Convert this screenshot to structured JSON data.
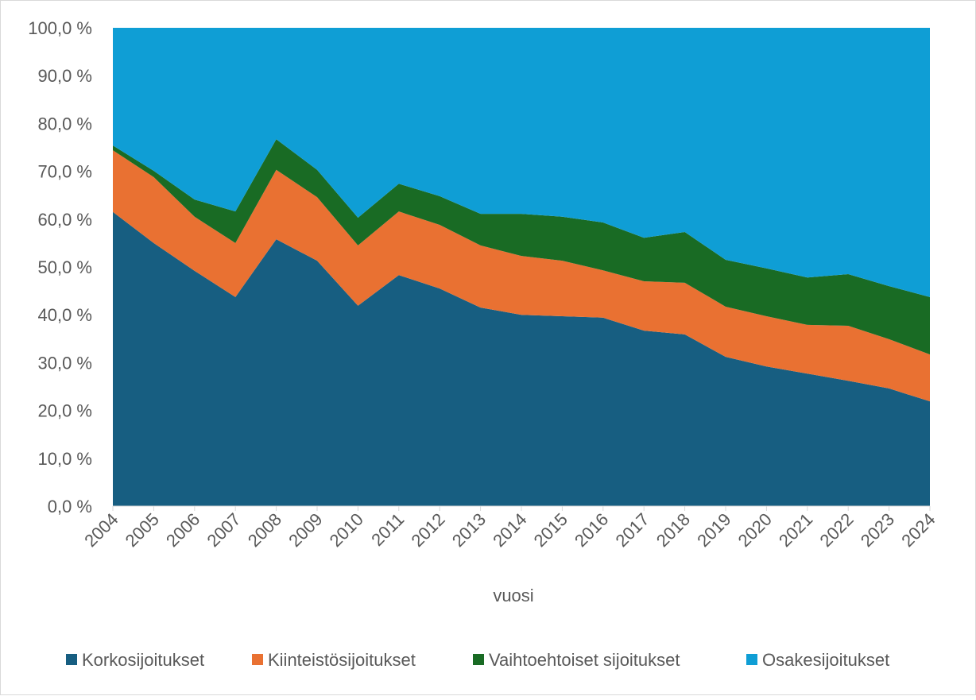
{
  "chart_data": {
    "type": "area",
    "stacked": "percent",
    "title": "",
    "xlabel": "vuosi",
    "ylabel": "",
    "ylim": [
      0,
      100
    ],
    "yticks": [
      "0,0 %",
      "10,0 %",
      "20,0 %",
      "30,0 %",
      "40,0 %",
      "50,0 %",
      "60,0 %",
      "70,0 %",
      "80,0 %",
      "90,0 %",
      "100,0 %"
    ],
    "grid": false,
    "legend_position": "bottom",
    "categories": [
      "2004",
      "2005",
      "2006",
      "2007",
      "2008",
      "2009",
      "2010",
      "2011",
      "2012",
      "2013",
      "2014",
      "2015",
      "2016",
      "2017",
      "2018",
      "2019",
      "2020",
      "2021",
      "2022",
      "2023",
      "2024"
    ],
    "series": [
      {
        "name": "Korkosijoitukset",
        "color": "#175e81",
        "values": [
          61.5,
          55.0,
          49.2,
          43.7,
          55.8,
          51.3,
          41.9,
          48.3,
          45.5,
          41.5,
          40.0,
          39.7,
          39.4,
          36.7,
          35.9,
          31.2,
          29.2,
          27.7,
          26.2,
          24.6,
          21.9
        ]
      },
      {
        "name": "Kiinteistösijoitukset",
        "color": "#e97132",
        "values": [
          12.9,
          13.8,
          11.3,
          11.3,
          14.5,
          13.3,
          12.6,
          13.3,
          13.3,
          13.0,
          12.3,
          11.6,
          9.9,
          10.3,
          10.8,
          10.5,
          10.5,
          10.2,
          11.5,
          10.3,
          9.8
        ]
      },
      {
        "name": "Vaihtoehtoiset sijoitukset",
        "color": "#196b24",
        "values": [
          1.0,
          1.3,
          3.6,
          6.6,
          6.4,
          5.7,
          5.8,
          5.8,
          6.0,
          6.6,
          8.8,
          9.2,
          10.0,
          9.1,
          10.6,
          9.8,
          10.0,
          9.9,
          10.8,
          11.1,
          12.0
        ]
      },
      {
        "name": "Osakesijoitukset",
        "color": "#0f9ed5",
        "values": [
          24.6,
          29.9,
          35.9,
          38.4,
          23.3,
          29.7,
          39.7,
          32.6,
          35.2,
          38.9,
          38.9,
          39.5,
          40.7,
          43.9,
          42.7,
          48.5,
          50.3,
          52.2,
          51.5,
          54.0,
          56.3
        ]
      }
    ]
  }
}
